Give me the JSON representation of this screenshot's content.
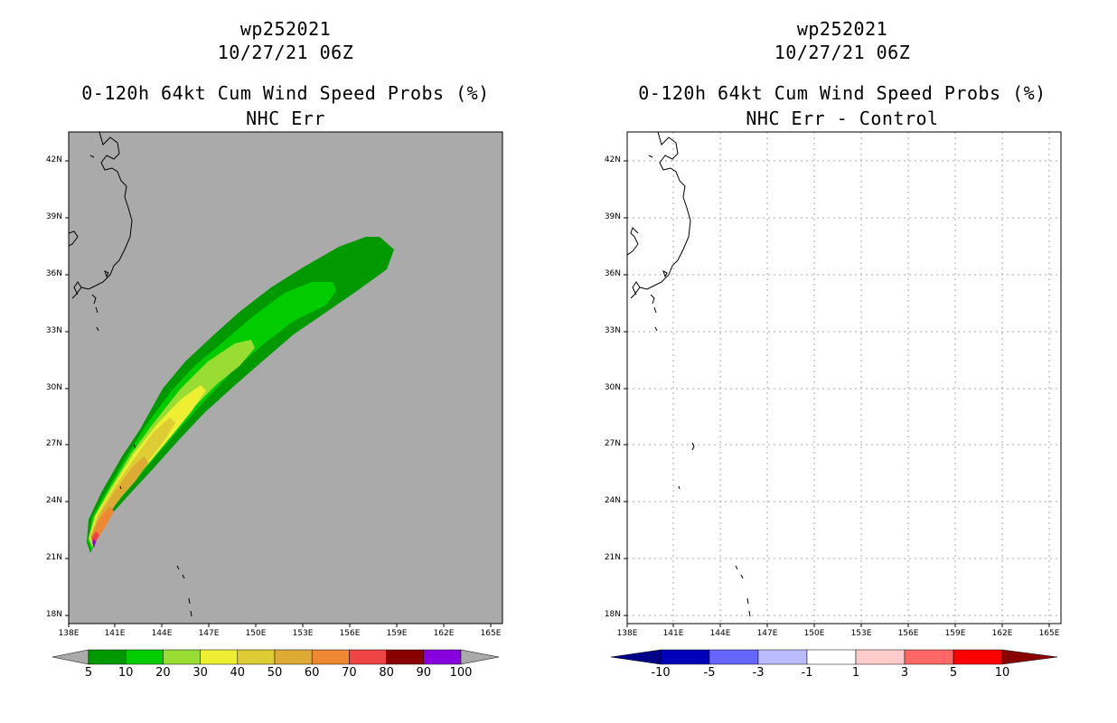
{
  "left_panel": {
    "title_line1": "wp252021",
    "title_line2": "10/27/21 06Z",
    "title_line3": "0-120h 64kt Cum Wind Speed Probs (%)",
    "title_line4": "NHC Err",
    "background_color": "#aaaaaa",
    "colorbar": {
      "labels": [
        "5",
        "10",
        "20",
        "30",
        "40",
        "50",
        "60",
        "70",
        "80",
        "90",
        "100"
      ],
      "colors": [
        "#009900",
        "#00cc00",
        "#99dd33",
        "#eeee33",
        "#ddcc33",
        "#ddaa33",
        "#ee8833",
        "#ee4444",
        "#880000",
        "#8800dd"
      ],
      "over_under_color": "#aaaaaa"
    }
  },
  "right_panel": {
    "title_line1": "wp252021",
    "title_line2": "10/27/21 06Z",
    "title_line3": "0-120h 64kt Cum Wind Speed Probs (%)",
    "title_line4": "NHC Err - Control",
    "background_color": "#ffffff",
    "colorbar": {
      "labels": [
        "-10",
        "-5",
        "-3",
        "-1",
        "1",
        "3",
        "5",
        "10"
      ],
      "colors": [
        "#0000bb",
        "#6666ff",
        "#bbbbff",
        "#ffffff",
        "#ffcccc",
        "#ff6666",
        "#ff0000"
      ],
      "under_color": "#000088",
      "over_color": "#880000"
    }
  },
  "axes": {
    "lat_labels": [
      "42N",
      "39N",
      "36N",
      "33N",
      "30N",
      "27N",
      "24N",
      "21N",
      "18N"
    ],
    "lon_labels": [
      "138E",
      "141E",
      "144E",
      "147E",
      "150E",
      "153E",
      "156E",
      "159E",
      "162E",
      "165E"
    ]
  }
}
